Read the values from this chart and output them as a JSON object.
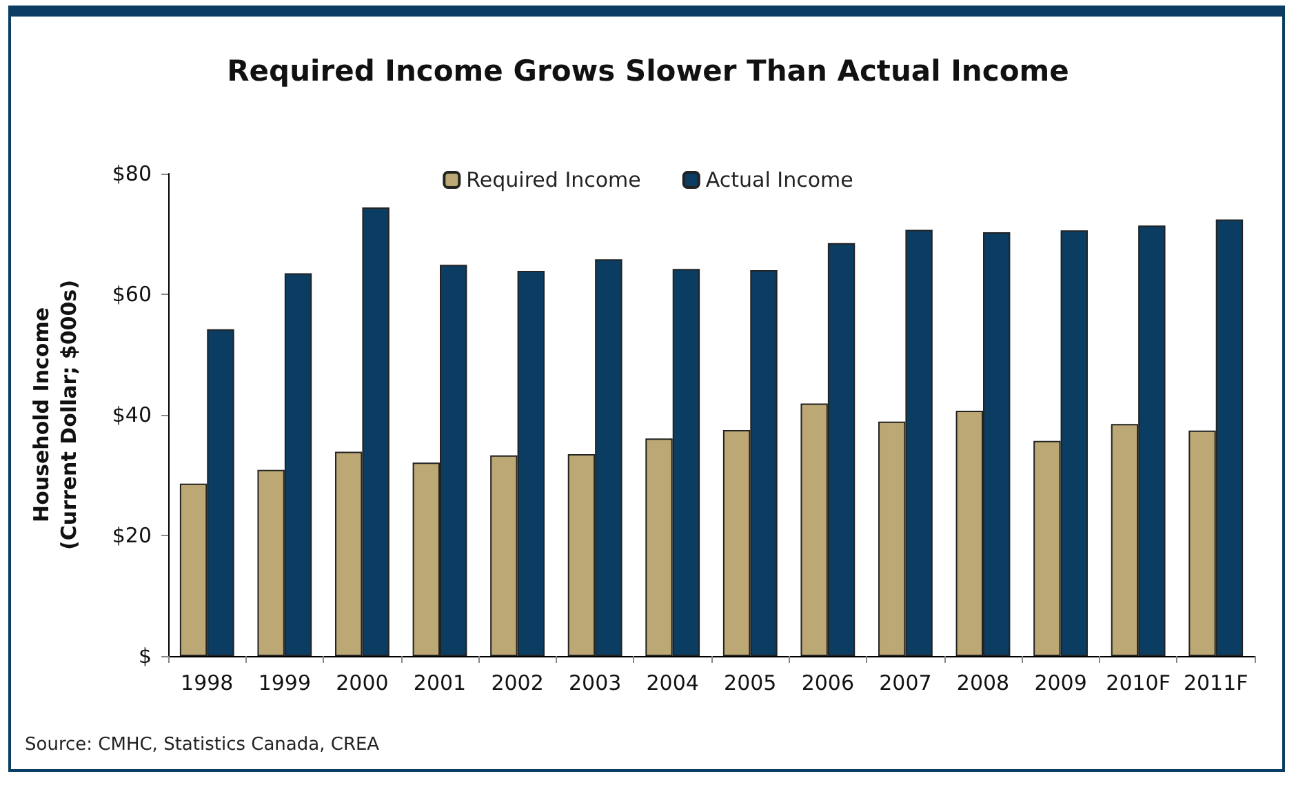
{
  "chart_data": {
    "type": "bar",
    "title": "Required Income Grows Slower Than Actual Income",
    "ylabel": "Household Income\n(Current Dollar; $000s)",
    "categories": [
      "1998",
      "1999",
      "2000",
      "2001",
      "2002",
      "2003",
      "2004",
      "2005",
      "2006",
      "2007",
      "2008",
      "2009",
      "2010F",
      "2011F"
    ],
    "series": [
      {
        "name": "Required Income",
        "color": "#bba874",
        "values": [
          28.6,
          30.9,
          33.9,
          32.1,
          33.3,
          33.5,
          36.1,
          37.5,
          41.9,
          38.9,
          40.7,
          35.7,
          38.5,
          37.4
        ]
      },
      {
        "name": "Actual Income",
        "color": "#0b3d62",
        "values": [
          54.2,
          63.5,
          74.4,
          64.9,
          63.9,
          65.8,
          64.2,
          64.0,
          68.5,
          70.7,
          70.3,
          70.6,
          71.4,
          72.4
        ]
      }
    ],
    "ylim": [
      0,
      80
    ],
    "yticks": [
      {
        "value": 0,
        "label": "$"
      },
      {
        "value": 20,
        "label": "$20"
      },
      {
        "value": 40,
        "label": "$40"
      },
      {
        "value": 60,
        "label": "$60"
      },
      {
        "value": 80,
        "label": "$80"
      }
    ],
    "legend": "top",
    "grid": false,
    "annotations": [
      "Source: CMHC, Statistics Canada, CREA"
    ]
  }
}
